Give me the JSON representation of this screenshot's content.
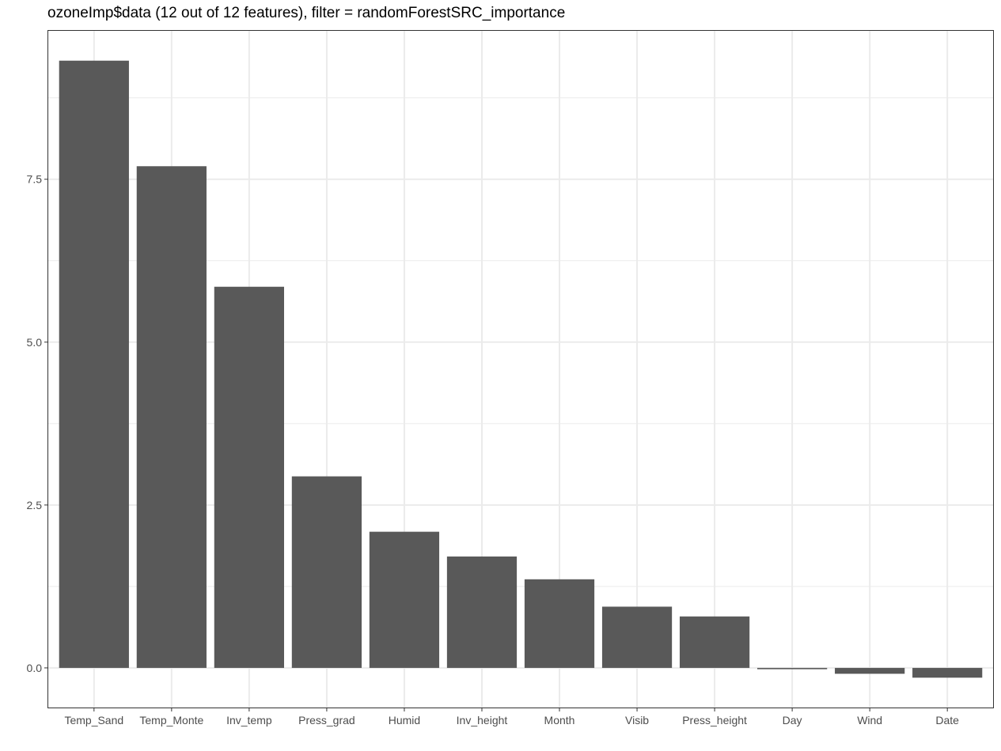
{
  "chart_data": {
    "type": "bar",
    "title": "ozoneImp$data (12 out of 12 features), filter = randomForestSRC_importance",
    "xlabel": "",
    "ylabel": "",
    "categories": [
      "Temp_Sand",
      "Temp_Monte",
      "Inv_temp",
      "Press_grad",
      "Humid",
      "Inv_height",
      "Month",
      "Visib",
      "Press_height",
      "Day",
      "Wind",
      "Date"
    ],
    "values": [
      9.32,
      7.7,
      5.85,
      2.94,
      2.09,
      1.71,
      1.36,
      0.94,
      0.79,
      -0.02,
      -0.09,
      -0.15
    ],
    "ylim": [
      -0.62,
      9.79
    ],
    "yticks": [
      0.0,
      2.5,
      5.0,
      7.5
    ],
    "ytick_labels": [
      "0.0",
      "2.5",
      "5.0",
      "7.5"
    ],
    "grid": true,
    "legend": "none",
    "bar_color": "#595959",
    "grid_color": "#ebebeb",
    "panel_border_color": "#333333"
  }
}
